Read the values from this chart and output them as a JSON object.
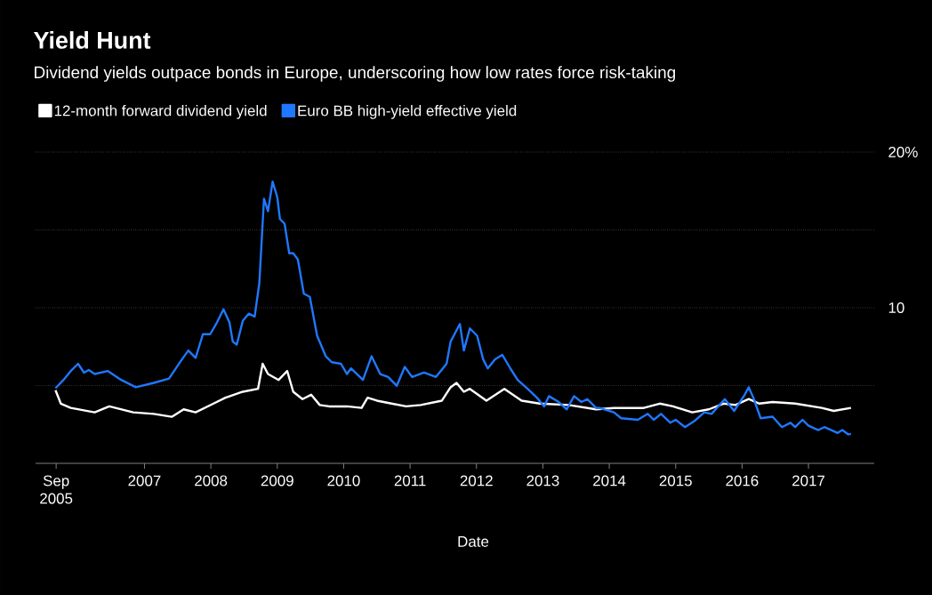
{
  "chart_data": {
    "type": "line",
    "title": "Yield Hunt",
    "subtitle": "Dividend yields outpace bonds in Europe, underscoring how low rates force risk-taking",
    "xlabel": "Date",
    "legend": "top left",
    "grid": "y",
    "xlim": [
      2005.36,
      2017.99
    ],
    "ylim": [
      0,
      20
    ],
    "xticks": [
      {
        "value": 2005.67,
        "label": "Sep 2005"
      },
      2007,
      2008,
      2009,
      2010,
      2011,
      2012,
      2013,
      2014,
      2015,
      2016,
      2017
    ],
    "yticks": [
      {
        "value": 5,
        "label": null
      },
      10,
      {
        "value": 15,
        "label": null
      },
      {
        "value": 20,
        "label": "20%"
      }
    ],
    "series": [
      {
        "name": "12-month forward dividend yield",
        "color": "#ffffff",
        "x": [
          2005.66,
          2005.74,
          2005.89,
          2006.25,
          2006.47,
          2006.83,
          2007.14,
          2007.41,
          2007.59,
          2007.77,
          2008.04,
          2008.22,
          2008.48,
          2008.71,
          2008.78,
          2008.86,
          2009.02,
          2009.15,
          2009.24,
          2009.38,
          2009.51,
          2009.64,
          2009.78,
          2010.05,
          2010.27,
          2010.36,
          2010.5,
          2010.72,
          2010.94,
          2011.16,
          2011.48,
          2011.61,
          2011.7,
          2011.81,
          2011.9,
          2012.15,
          2012.42,
          2012.68,
          2012.95,
          2013.39,
          2013.8,
          2014.07,
          2014.52,
          2014.76,
          2014.96,
          2015.25,
          2015.5,
          2015.72,
          2015.9,
          2016.1,
          2016.26,
          2016.46,
          2016.8,
          2017.2,
          2017.38,
          2017.64
        ],
        "values": [
          4.7,
          3.84,
          3.56,
          3.28,
          3.66,
          3.28,
          3.18,
          2.99,
          3.47,
          3.28,
          3.84,
          4.22,
          4.6,
          4.79,
          6.4,
          5.74,
          5.36,
          5.93,
          4.6,
          4.13,
          4.41,
          3.75,
          3.66,
          3.66,
          3.56,
          4.22,
          4.03,
          3.84,
          3.66,
          3.75,
          4.03,
          4.89,
          5.17,
          4.6,
          4.79,
          4.03,
          4.79,
          4.03,
          3.84,
          3.75,
          3.47,
          3.56,
          3.56,
          3.84,
          3.66,
          3.28,
          3.47,
          3.84,
          3.75,
          4.13,
          3.84,
          3.94,
          3.84,
          3.56,
          3.37,
          3.56
        ]
      },
      {
        "name": "Euro BB high-yield effective yield",
        "color": "#1f78ff",
        "x": [
          2005.66,
          2005.78,
          2005.89,
          2006.0,
          2006.09,
          2006.16,
          2006.25,
          2006.45,
          2006.65,
          2006.87,
          2007.14,
          2007.37,
          2007.55,
          2007.66,
          2007.77,
          2007.88,
          2007.99,
          2008.08,
          2008.19,
          2008.28,
          2008.33,
          2008.39,
          2008.48,
          2008.57,
          2008.66,
          2008.73,
          2008.8,
          2008.86,
          2008.93,
          2009.0,
          2009.04,
          2009.11,
          2009.18,
          2009.24,
          2009.31,
          2009.4,
          2009.49,
          2009.6,
          2009.73,
          2009.82,
          2009.96,
          2010.05,
          2010.11,
          2010.29,
          2010.42,
          2010.55,
          2010.67,
          2010.8,
          2010.92,
          2011.03,
          2011.21,
          2011.39,
          2011.55,
          2011.61,
          2011.75,
          2011.81,
          2011.9,
          2012.01,
          2012.1,
          2012.17,
          2012.28,
          2012.39,
          2012.51,
          2012.62,
          2012.77,
          2012.91,
          2013.02,
          2013.09,
          2013.24,
          2013.36,
          2013.47,
          2013.58,
          2013.67,
          2013.8,
          2013.85,
          2014.07,
          2014.18,
          2014.43,
          2014.58,
          2014.67,
          2014.78,
          2014.92,
          2015.0,
          2015.14,
          2015.28,
          2015.43,
          2015.54,
          2015.74,
          2015.88,
          2016.04,
          2016.1,
          2016.17,
          2016.28,
          2016.46,
          2016.6,
          2016.73,
          2016.8,
          2016.91,
          2017.0,
          2017.15,
          2017.24,
          2017.44,
          2017.51,
          2017.6,
          2017.64
        ],
        "values": [
          4.83,
          5.36,
          5.93,
          6.4,
          5.83,
          6.0,
          5.74,
          5.93,
          5.36,
          4.89,
          5.17,
          5.45,
          6.59,
          7.25,
          6.78,
          8.3,
          8.3,
          8.96,
          9.9,
          9.05,
          7.82,
          7.63,
          9.15,
          9.62,
          9.43,
          11.6,
          17.0,
          16.2,
          18.1,
          17.1,
          15.7,
          15.4,
          13.5,
          13.5,
          13.1,
          10.9,
          10.7,
          8.2,
          6.88,
          6.5,
          6.4,
          5.74,
          6.1,
          5.36,
          6.88,
          5.74,
          5.55,
          4.98,
          6.2,
          5.55,
          5.83,
          5.55,
          6.4,
          7.82,
          8.96,
          7.25,
          8.67,
          8.2,
          6.69,
          6.1,
          6.69,
          6.97,
          6.1,
          5.36,
          4.79,
          4.22,
          3.66,
          4.32,
          3.94,
          3.47,
          4.32,
          3.94,
          4.13,
          3.56,
          3.56,
          3.28,
          2.9,
          2.8,
          3.18,
          2.8,
          3.18,
          2.61,
          2.8,
          2.33,
          2.71,
          3.28,
          3.18,
          4.13,
          3.37,
          4.41,
          4.89,
          4.22,
          2.9,
          3.0,
          2.33,
          2.61,
          2.33,
          2.8,
          2.42,
          2.14,
          2.33,
          1.95,
          2.14,
          1.86,
          1.89
        ]
      }
    ]
  }
}
